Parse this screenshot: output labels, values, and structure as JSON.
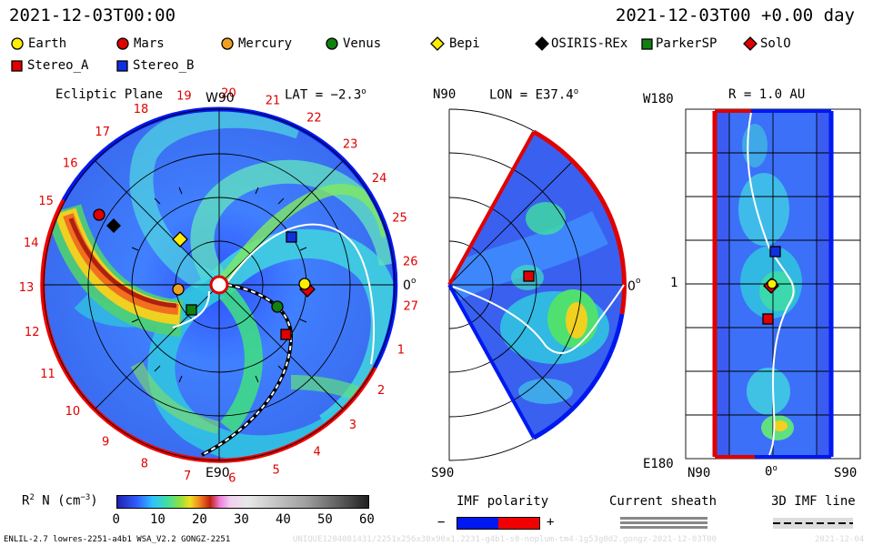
{
  "header": {
    "datetime": "2021-12-03T00:00",
    "offset": "2021-12-03T00 +0.00 day"
  },
  "legend": [
    {
      "label": "Earth",
      "marker": "circle",
      "color": "#ffee00"
    },
    {
      "label": "Mars",
      "marker": "circle",
      "color": "#e00000"
    },
    {
      "label": "Mercury",
      "marker": "circle",
      "color": "#f0a020"
    },
    {
      "label": "Venus",
      "marker": "circle",
      "color": "#108010"
    },
    {
      "label": "Bepi",
      "marker": "diamond",
      "color": "#ffee00"
    },
    {
      "label": "OSIRIS-REx",
      "marker": "diamond",
      "color": "#000000"
    },
    {
      "label": "ParkerSP",
      "marker": "square",
      "color": "#108010"
    },
    {
      "label": "SolO",
      "marker": "diamond",
      "color": "#e00000"
    },
    {
      "label": "Stereo_A",
      "marker": "square",
      "color": "#e00000"
    },
    {
      "label": "Stereo_B",
      "marker": "square",
      "color": "#1030e0"
    }
  ],
  "panels": {
    "ecliptic": {
      "title": "Ecliptic Plane",
      "top_label": "W90",
      "lat": "LAT = −2.3",
      "deg": "o",
      "right_label": "0",
      "bottom_label": "E90",
      "carrington": [
        "19",
        "20",
        "21",
        "22",
        "23",
        "24",
        "25",
        "26",
        "27",
        "1",
        "2",
        "3",
        "4",
        "5",
        "6",
        "7",
        "8",
        "9",
        "10",
        "11",
        "12",
        "13",
        "14",
        "15",
        "16",
        "17",
        "18"
      ]
    },
    "meridional": {
      "top_label": "N90",
      "lon": "LON = E37.4",
      "deg": "o",
      "right_label": "0",
      "bottom_label": "S90"
    },
    "radial": {
      "title": "R = 1.0 AU",
      "top_left": "W180",
      "mid_left": "1",
      "bottom_left": "E180",
      "bottom_n": "N90",
      "bottom_mid": "0",
      "bottom_s": "S90"
    }
  },
  "colorbar": {
    "label": "R",
    "label_sup": "2",
    "label_tail": " N (cm",
    "label_sup2": "−3",
    "label_end": ")",
    "ticks": [
      "0",
      "10",
      "20",
      "30",
      "40",
      "50",
      "60"
    ]
  },
  "imf": {
    "title": "IMF polarity",
    "minus": "−",
    "plus": "+",
    "colors": {
      "negative": "#0018f0",
      "positive": "#f00000"
    }
  },
  "sheath": {
    "title": "Current sheath"
  },
  "line3d": {
    "title": "3D IMF line"
  },
  "footer": {
    "left": "ENLIL-2.7 lowres-2251-a4b1 WSA_V2.2 GONGZ-2251",
    "middle": "UNIQUE1204081431/2251x256x30x90x1.2231-g4b1-s0-noplum-tm4-1g53g0d2.gongz-2021-12-03T00",
    "right": "2021-12-04"
  }
}
